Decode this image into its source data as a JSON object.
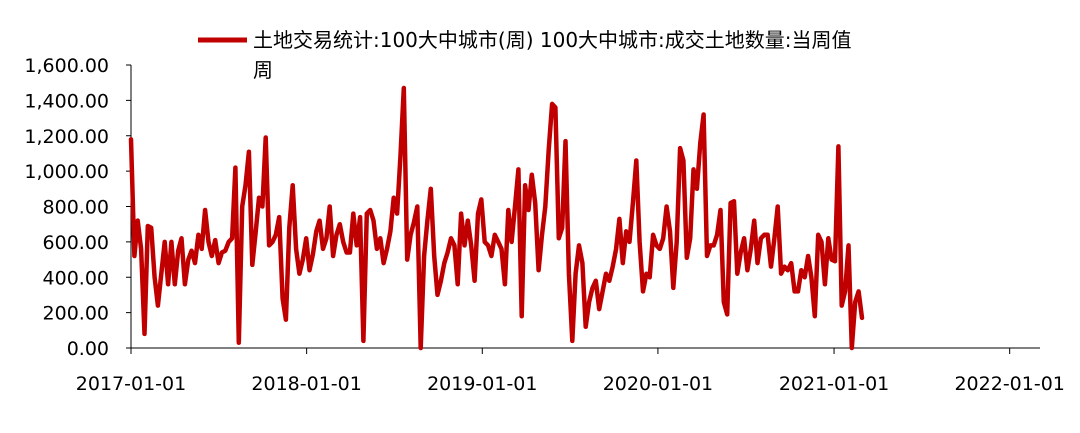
{
  "chart_data": {
    "type": "line",
    "title": "",
    "xlabel": "",
    "ylabel": "",
    "ylim": [
      0,
      1600
    ],
    "xlim": [
      "2017-01-01",
      "2022-03-05"
    ],
    "y_ticks": [
      "0.00",
      "200.00",
      "400.00",
      "600.00",
      "800.00",
      "1,000.00",
      "1,200.00",
      "1,400.00",
      "1,600.00"
    ],
    "x_ticks": [
      "2017-01-01",
      "2018-01-01",
      "2019-01-01",
      "2020-01-01",
      "2021-01-01",
      "2022-01-01"
    ],
    "grid": false,
    "legend": {
      "position": "top",
      "entries": [
        "土地交易统计:100大中城市(周) 100大中城市:成交土地数量:当周值",
        "周"
      ]
    },
    "color": "#c00000",
    "series": [
      {
        "name": "土地交易统计:100大中城市(周) 100大中城市:成交土地数量:当周值 周",
        "frequency": "weekly",
        "x_start": "2017-01-01",
        "values": [
          1180,
          520,
          720,
          560,
          80,
          690,
          680,
          400,
          240,
          420,
          600,
          360,
          600,
          360,
          550,
          620,
          360,
          500,
          550,
          480,
          640,
          560,
          780,
          600,
          520,
          610,
          480,
          540,
          550,
          600,
          620,
          1020,
          30,
          800,
          920,
          1110,
          470,
          650,
          850,
          800,
          1190,
          580,
          600,
          640,
          740,
          280,
          160,
          680,
          920,
          560,
          420,
          500,
          620,
          440,
          530,
          660,
          720,
          560,
          620,
          800,
          520,
          640,
          700,
          600,
          540,
          540,
          760,
          580,
          740,
          40,
          760,
          780,
          720,
          560,
          620,
          480,
          560,
          660,
          850,
          760,
          1090,
          1470,
          500,
          640,
          710,
          800,
          0,
          520,
          720,
          900,
          520,
          300,
          380,
          480,
          540,
          620,
          580,
          360,
          760,
          580,
          720,
          580,
          380,
          760,
          840,
          600,
          580,
          520,
          640,
          600,
          560,
          360,
          780,
          600,
          800,
          1010,
          180,
          920,
          780,
          980,
          820,
          440,
          640,
          800,
          1120,
          1380,
          1360,
          620,
          680,
          1170,
          420,
          40,
          420,
          580,
          480,
          120,
          260,
          340,
          380,
          220,
          320,
          420,
          380,
          460,
          560,
          730,
          480,
          660,
          600,
          820,
          1060,
          600,
          320,
          420,
          400,
          640,
          580,
          560,
          620,
          800,
          660,
          340,
          600,
          1130,
          1060,
          510,
          620,
          1010,
          900,
          1160,
          1320,
          520,
          580,
          580,
          640,
          780,
          260,
          190,
          820,
          830,
          420,
          540,
          620,
          440,
          560,
          720,
          480,
          620,
          640,
          640,
          460,
          620,
          800,
          420,
          460,
          440,
          480,
          320,
          320,
          440,
          400,
          520,
          400,
          180,
          640,
          600,
          360,
          620,
          500,
          490,
          1140,
          240,
          320,
          580,
          0,
          260,
          320,
          170
        ]
      }
    ]
  }
}
